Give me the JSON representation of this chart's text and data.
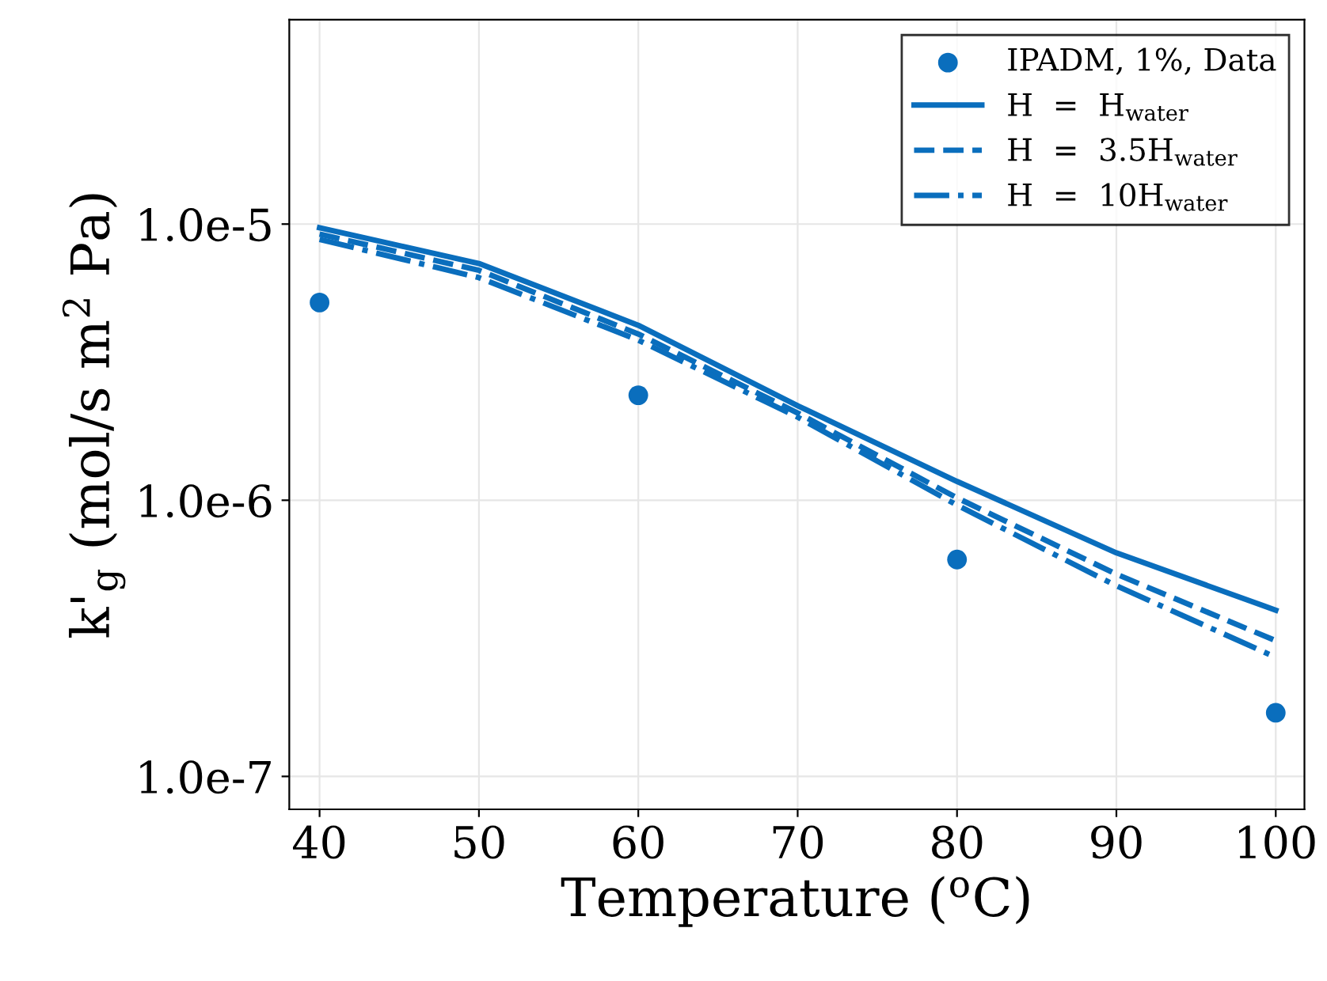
{
  "chart_data": {
    "type": "line",
    "xlabel": "Temperature ($^{o}$C)",
    "ylabel": "k'$_{g}$ (mol/s m$^{2}$ Pa)",
    "log": "y",
    "grid": true,
    "legend": "top right",
    "xlim": [
      38.1,
      101.8
    ],
    "xticks": [
      40,
      50,
      60,
      70,
      80,
      90,
      100
    ],
    "ylim": [
      7.6e-08,
      5.5e-05
    ],
    "yticks": [
      {
        "value": 1e-07,
        "label": "1.0e-7"
      },
      {
        "value": 1e-06,
        "label": "1.0e-6"
      },
      {
        "value": 1e-05,
        "label": "1.0e-5"
      }
    ],
    "series": [
      {
        "name": "IPADM, 1%, Data",
        "type": "scatter",
        "marker": "circle",
        "color": "#0a6ebd",
        "x": [
          40,
          60,
          80,
          100
        ],
        "values": [
          5.2e-06,
          2.4e-06,
          6.1e-07,
          1.7e-07
        ]
      },
      {
        "name": "H  =  H$_{water}$",
        "line_style": "solid",
        "color": "#0a6ebd",
        "x": [
          40,
          50,
          60,
          70,
          80,
          90,
          100
        ],
        "values": [
          9.7e-06,
          7.2e-06,
          4.3e-06,
          2.2e-06,
          1.17e-06,
          6.45e-07,
          4e-07
        ]
      },
      {
        "name": "H  =  3.5H$_{water}$",
        "line_style": "dashed",
        "color": "#0a6ebd",
        "x": [
          40,
          50,
          60,
          70,
          80,
          90,
          100
        ],
        "values": [
          9.2e-06,
          6.8e-06,
          4e-06,
          2.07e-06,
          1.02e-06,
          5.4e-07,
          3.1e-07
        ]
      },
      {
        "name": "H  =  10H$_{water}$",
        "line_style": "dashdot",
        "color": "#0a6ebd",
        "x": [
          40,
          50,
          60,
          70,
          80,
          90,
          100
        ],
        "values": [
          8.8e-06,
          6.4e-06,
          3.8e-06,
          2e-06,
          9.6e-07,
          4.9e-07,
          2.7e-07
        ]
      }
    ]
  }
}
